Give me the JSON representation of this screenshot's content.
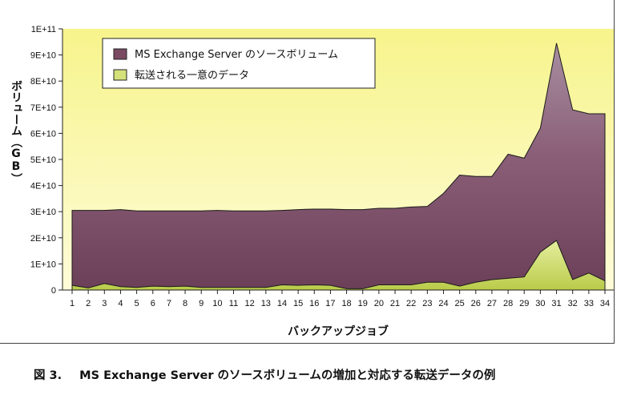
{
  "chart_data": {
    "type": "area",
    "title": "",
    "xlabel": "バックアップジョブ",
    "ylabel": "ボリューム（GB）",
    "x": [
      1,
      2,
      3,
      4,
      5,
      6,
      7,
      8,
      9,
      10,
      11,
      12,
      13,
      14,
      15,
      16,
      17,
      18,
      19,
      20,
      21,
      22,
      23,
      24,
      25,
      26,
      27,
      28,
      29,
      30,
      31,
      32,
      33,
      34
    ],
    "ylim": [
      0,
      100000000000
    ],
    "yticks": [
      "0",
      "1E+10",
      "2E+10",
      "3E+10",
      "4E+10",
      "5E+10",
      "6E+10",
      "7E+10",
      "8E+10",
      "9E+10",
      "1E+11"
    ],
    "grid": false,
    "legend_placement": "top-left",
    "series": [
      {
        "name": "MS Exchange Server  のソースボリューム",
        "color": "#7a4a62",
        "values": [
          30500000000,
          30500000000,
          30500000000,
          30800000000,
          30300000000,
          30300000000,
          30300000000,
          30300000000,
          30300000000,
          30500000000,
          30300000000,
          30300000000,
          30300000000,
          30500000000,
          30800000000,
          31000000000,
          31000000000,
          30800000000,
          30800000000,
          31300000000,
          31300000000,
          31800000000,
          32000000000,
          37000000000,
          44000000000,
          43500000000,
          43500000000,
          52000000000,
          50500000000,
          62000000000,
          94500000000,
          69000000000,
          67500000000,
          67500000000
        ]
      },
      {
        "name": "転送される一意のデータ",
        "color": "#d4e07a",
        "values": [
          1800000000,
          800000000,
          2500000000,
          1300000000,
          1000000000,
          1500000000,
          1300000000,
          1500000000,
          1000000000,
          1000000000,
          1000000000,
          1000000000,
          1000000000,
          2000000000,
          1800000000,
          2000000000,
          1800000000,
          500000000,
          500000000,
          2000000000,
          2000000000,
          2000000000,
          3000000000,
          3000000000,
          1500000000,
          3000000000,
          4000000000,
          4500000000,
          5000000000,
          14500000000,
          19000000000,
          4000000000,
          6500000000,
          3500000000
        ]
      }
    ]
  },
  "caption": {
    "figure_number": "図 3.",
    "text": "MS Exchange Server  のソースボリュームの増加と対応する転送データの例"
  }
}
